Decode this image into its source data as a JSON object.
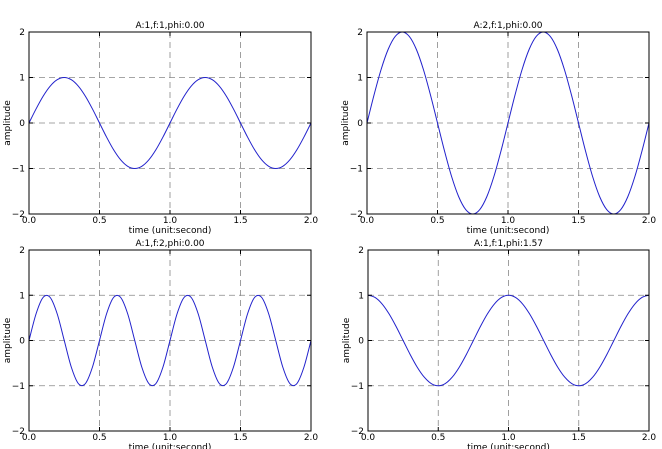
{
  "chart_data": [
    {
      "type": "line",
      "title": "A:1,f:1,phi:0.00",
      "xlabel": "time (unit:second)",
      "ylabel": "amplitude",
      "xlim": [
        0,
        2
      ],
      "ylim": [
        -2,
        2
      ],
      "xticks": [
        "0.0",
        "0.5",
        "1.0",
        "1.5",
        "2.0"
      ],
      "yticks": [
        "−2",
        "−1",
        "0",
        "1",
        "2"
      ],
      "grid": true,
      "line_color": "#2222cc",
      "x": [
        0,
        0.05,
        0.1,
        0.15,
        0.2,
        0.25,
        0.3,
        0.35,
        0.4,
        0.45,
        0.5,
        0.55,
        0.6,
        0.65,
        0.7,
        0.75,
        0.8,
        0.85,
        0.9,
        0.95,
        1,
        1.05,
        1.1,
        1.15,
        1.2,
        1.25,
        1.3,
        1.35,
        1.4,
        1.45,
        1.5,
        1.55,
        1.6,
        1.65,
        1.7,
        1.75,
        1.8,
        1.85,
        1.9,
        1.95,
        2
      ],
      "y": [
        0,
        0.309,
        0.588,
        0.809,
        0.951,
        1,
        0.951,
        0.809,
        0.588,
        0.309,
        0,
        -0.309,
        -0.588,
        -0.809,
        -0.951,
        -1,
        -0.951,
        -0.809,
        -0.588,
        -0.309,
        0,
        0.309,
        0.588,
        0.809,
        0.951,
        1,
        0.951,
        0.809,
        0.588,
        0.309,
        0,
        -0.309,
        -0.588,
        -0.809,
        -0.951,
        -1,
        -0.951,
        -0.809,
        -0.588,
        -0.309,
        0
      ]
    },
    {
      "type": "line",
      "title": "A:2,f:1,phi:0.00",
      "xlabel": "time (unit:second)",
      "ylabel": "amplitude",
      "xlim": [
        0,
        2
      ],
      "ylim": [
        -2,
        2
      ],
      "xticks": [
        "0.0",
        "0.5",
        "1.0",
        "1.5",
        "2.0"
      ],
      "yticks": [
        "−2",
        "−1",
        "0",
        "1",
        "2"
      ],
      "grid": true,
      "line_color": "#2222cc",
      "x": [
        0,
        0.05,
        0.1,
        0.15,
        0.2,
        0.25,
        0.3,
        0.35,
        0.4,
        0.45,
        0.5,
        0.55,
        0.6,
        0.65,
        0.7,
        0.75,
        0.8,
        0.85,
        0.9,
        0.95,
        1,
        1.05,
        1.1,
        1.15,
        1.2,
        1.25,
        1.3,
        1.35,
        1.4,
        1.45,
        1.5,
        1.55,
        1.6,
        1.65,
        1.7,
        1.75,
        1.8,
        1.85,
        1.9,
        1.95,
        2
      ],
      "y": [
        0,
        0.618,
        1.176,
        1.618,
        1.902,
        2,
        1.902,
        1.618,
        1.176,
        0.618,
        0,
        -0.618,
        -1.176,
        -1.618,
        -1.902,
        -2,
        -1.902,
        -1.618,
        -1.176,
        -0.618,
        0,
        0.618,
        1.176,
        1.618,
        1.902,
        2,
        1.902,
        1.618,
        1.176,
        0.618,
        0,
        -0.618,
        -1.176,
        -1.618,
        -1.902,
        -2,
        -1.902,
        -1.618,
        -1.176,
        -0.618,
        0
      ]
    },
    {
      "type": "line",
      "title": "A:1,f:2,phi:0.00",
      "xlabel": "time (unit:second)",
      "ylabel": "amplitude",
      "xlim": [
        0,
        2
      ],
      "ylim": [
        -2,
        2
      ],
      "xticks": [
        "0.0",
        "0.5",
        "1.0",
        "1.5",
        "2.0"
      ],
      "yticks": [
        "−2",
        "−1",
        "0",
        "1",
        "2"
      ],
      "grid": true,
      "line_color": "#2222cc",
      "x": [
        0,
        0.05,
        0.1,
        0.15,
        0.2,
        0.25,
        0.3,
        0.35,
        0.4,
        0.45,
        0.5,
        0.55,
        0.6,
        0.65,
        0.7,
        0.75,
        0.8,
        0.85,
        0.9,
        0.95,
        1,
        1.05,
        1.1,
        1.15,
        1.2,
        1.25,
        1.3,
        1.35,
        1.4,
        1.45,
        1.5,
        1.55,
        1.6,
        1.65,
        1.7,
        1.75,
        1.8,
        1.85,
        1.9,
        1.95,
        2
      ],
      "y": [
        0,
        0.588,
        0.951,
        0.951,
        0.588,
        0,
        -0.588,
        -0.951,
        -0.951,
        -0.588,
        0,
        0.588,
        0.951,
        0.951,
        0.588,
        0,
        -0.588,
        -0.951,
        -0.951,
        -0.588,
        0,
        0.588,
        0.951,
        0.951,
        0.588,
        0,
        -0.588,
        -0.951,
        -0.951,
        -0.588,
        0,
        0.588,
        0.951,
        0.951,
        0.588,
        0,
        -0.588,
        -0.951,
        -0.951,
        -0.588,
        0
      ]
    },
    {
      "type": "line",
      "title": "A:1,f:1,phi:1.57",
      "xlabel": "time (unit:second)",
      "ylabel": "amplitude",
      "xlim": [
        0,
        2
      ],
      "ylim": [
        -2,
        2
      ],
      "xticks": [
        "0.0",
        "0.5",
        "1.0",
        "1.5",
        "2.0"
      ],
      "yticks": [
        "−2",
        "−1",
        "0",
        "1",
        "2"
      ],
      "grid": true,
      "line_color": "#2222cc",
      "x": [
        0,
        0.05,
        0.1,
        0.15,
        0.2,
        0.25,
        0.3,
        0.35,
        0.4,
        0.45,
        0.5,
        0.55,
        0.6,
        0.65,
        0.7,
        0.75,
        0.8,
        0.85,
        0.9,
        0.95,
        1,
        1.05,
        1.1,
        1.15,
        1.2,
        1.25,
        1.3,
        1.35,
        1.4,
        1.45,
        1.5,
        1.55,
        1.6,
        1.65,
        1.7,
        1.75,
        1.8,
        1.85,
        1.9,
        1.95,
        2
      ],
      "y": [
        1,
        0.951,
        0.809,
        0.588,
        0.309,
        0,
        -0.309,
        -0.588,
        -0.809,
        -0.951,
        -1,
        -0.951,
        -0.809,
        -0.588,
        -0.309,
        0,
        0.309,
        0.588,
        0.809,
        0.951,
        1,
        0.951,
        0.809,
        0.588,
        0.309,
        0,
        -0.309,
        -0.588,
        -0.809,
        -0.951,
        -1,
        -0.951,
        -0.809,
        -0.588,
        -0.309,
        0,
        0.309,
        0.588,
        0.809,
        0.951,
        1
      ]
    }
  ]
}
